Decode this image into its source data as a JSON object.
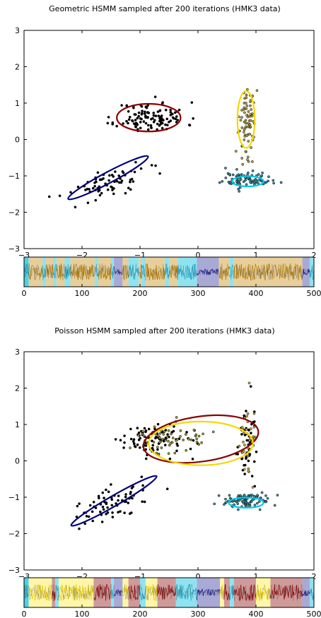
{
  "chart_data": [
    {
      "type": "scatter",
      "title": "Geometric HSMM sampled after 200 iterations (HMK3 data)",
      "xlabel": "",
      "ylabel": "",
      "xlim": [
        -3,
        2
      ],
      "ylim": [
        -3,
        3
      ],
      "xticks": [
        "−3",
        "−2",
        "−1",
        "0",
        "1",
        "2"
      ],
      "yticks": [
        "−3",
        "−2",
        "−1",
        "0",
        "1",
        "2",
        "3"
      ],
      "grid": false,
      "clusters": [
        {
          "color": "#000000",
          "center": [
            -0.8,
            0.6
          ],
          "spread": [
            0.5,
            0.35
          ],
          "n": 120
        },
        {
          "color": "#000000",
          "center": [
            -1.55,
            -1.2
          ],
          "spread": [
            0.6,
            0.35
          ],
          "n": 70,
          "tilt": 0.55
        },
        {
          "color": "#b3a24a",
          "center": [
            0.85,
            0.5
          ],
          "spread": [
            0.12,
            0.8
          ],
          "n": 80
        },
        {
          "color": "#3b8ca0",
          "center": [
            0.85,
            -1.1
          ],
          "spread": [
            0.35,
            0.18
          ],
          "n": 90
        }
      ],
      "ellipses": [
        {
          "color": "#8b0000",
          "center": [
            -0.85,
            0.6
          ],
          "rx": 0.55,
          "ry": 0.38,
          "angle": 0
        },
        {
          "color": "#00007a",
          "center": [
            -1.55,
            -1.05
          ],
          "rx": 0.78,
          "ry": 0.15,
          "angle": 28
        },
        {
          "color": "#f5d800",
          "center": [
            0.83,
            0.55
          ],
          "rx": 0.15,
          "ry": 0.78,
          "angle": 0
        },
        {
          "color": "#00c8e8",
          "center": [
            0.86,
            -1.15
          ],
          "rx": 0.27,
          "ry": 0.14,
          "angle": 0
        }
      ],
      "state_sequence": {
        "x_range": [
          0,
          500
        ],
        "xticks": [
          "0",
          "100",
          "200",
          "300",
          "400",
          "500"
        ],
        "segments": [
          {
            "start": 0,
            "end": 8,
            "color": "#4fd0e6"
          },
          {
            "start": 8,
            "end": 32,
            "color": "#e8cf9a"
          },
          {
            "start": 32,
            "end": 38,
            "color": "#8fe3f0"
          },
          {
            "start": 38,
            "end": 50,
            "color": "#e8cf9a"
          },
          {
            "start": 50,
            "end": 56,
            "color": "#8fe3f0"
          },
          {
            "start": 56,
            "end": 70,
            "color": "#e8cf9a"
          },
          {
            "start": 70,
            "end": 80,
            "color": "#8fe3f0"
          },
          {
            "start": 80,
            "end": 122,
            "color": "#e8cf9a"
          },
          {
            "start": 122,
            "end": 128,
            "color": "#8fe3f0"
          },
          {
            "start": 128,
            "end": 150,
            "color": "#e8cf9a"
          },
          {
            "start": 150,
            "end": 155,
            "color": "#8fe3f0"
          },
          {
            "start": 155,
            "end": 170,
            "color": "#a9a9d6"
          },
          {
            "start": 170,
            "end": 180,
            "color": "#e8cf9a"
          },
          {
            "start": 180,
            "end": 198,
            "color": "#8fe3f0"
          },
          {
            "start": 198,
            "end": 203,
            "color": "#e8cf9a"
          },
          {
            "start": 203,
            "end": 210,
            "color": "#8fe3f0"
          },
          {
            "start": 210,
            "end": 243,
            "color": "#e8cf9a"
          },
          {
            "start": 243,
            "end": 250,
            "color": "#8fe3f0"
          },
          {
            "start": 250,
            "end": 265,
            "color": "#e8cf9a"
          },
          {
            "start": 265,
            "end": 298,
            "color": "#8fe3f0"
          },
          {
            "start": 298,
            "end": 336,
            "color": "#a9a9d6"
          },
          {
            "start": 336,
            "end": 355,
            "color": "#e8cf9a"
          },
          {
            "start": 355,
            "end": 362,
            "color": "#8fe3f0"
          },
          {
            "start": 362,
            "end": 480,
            "color": "#e8cf9a"
          },
          {
            "start": 480,
            "end": 493,
            "color": "#a9a9d6"
          },
          {
            "start": 493,
            "end": 500,
            "color": "#8fe3f0"
          }
        ]
      }
    },
    {
      "type": "scatter",
      "title": "Poisson HSMM sampled after 200 iterations (HMK3 data)",
      "xlabel": "",
      "ylabel": "",
      "xlim": [
        -3,
        2
      ],
      "ylim": [
        -3,
        3
      ],
      "xticks": [
        "−3",
        "−2",
        "−1",
        "0",
        "1",
        "2"
      ],
      "yticks": [
        "−3",
        "−2",
        "−1",
        "0",
        "1",
        "2",
        "3"
      ],
      "grid": false,
      "clusters": [
        {
          "color": "#000000",
          "center": [
            -0.8,
            0.6
          ],
          "spread": [
            0.5,
            0.35
          ],
          "n": 90
        },
        {
          "color": "#9a9a3a",
          "center": [
            -0.6,
            0.6
          ],
          "spread": [
            0.55,
            0.38
          ],
          "n": 60
        },
        {
          "color": "#000000",
          "center": [
            -1.55,
            -1.2
          ],
          "spread": [
            0.6,
            0.35
          ],
          "n": 70,
          "tilt": 0.55
        },
        {
          "color": "#000000",
          "center": [
            0.85,
            0.5
          ],
          "spread": [
            0.12,
            0.8
          ],
          "n": 50
        },
        {
          "color": "#c9b04a",
          "center": [
            0.85,
            0.5
          ],
          "spread": [
            0.12,
            0.8
          ],
          "n": 40
        },
        {
          "color": "#3b8ca0",
          "center": [
            0.85,
            -1.1
          ],
          "spread": [
            0.35,
            0.18
          ],
          "n": 90
        }
      ],
      "ellipses": [
        {
          "color": "#8b0000",
          "center": [
            0.05,
            0.6
          ],
          "rx": 1.0,
          "ry": 0.62,
          "angle": 8
        },
        {
          "color": "#f5d800",
          "center": [
            0.05,
            0.48
          ],
          "rx": 0.9,
          "ry": 0.6,
          "angle": 0
        },
        {
          "color": "#00007a",
          "center": [
            -1.45,
            -1.1
          ],
          "rx": 0.85,
          "ry": 0.14,
          "angle": 30
        },
        {
          "color": "#00c8e8",
          "center": [
            0.83,
            -1.15
          ],
          "rx": 0.3,
          "ry": 0.14,
          "angle": 0
        }
      ],
      "state_sequence": {
        "x_range": [
          0,
          500
        ],
        "xticks": [
          "0",
          "100",
          "200",
          "300",
          "400",
          "500"
        ],
        "segments": [
          {
            "start": 0,
            "end": 8,
            "color": "#4fd0e6"
          },
          {
            "start": 8,
            "end": 48,
            "color": "#fff6a8"
          },
          {
            "start": 48,
            "end": 54,
            "color": "#cf9a9a"
          },
          {
            "start": 54,
            "end": 60,
            "color": "#8fe3f0"
          },
          {
            "start": 60,
            "end": 120,
            "color": "#fff6a8"
          },
          {
            "start": 120,
            "end": 150,
            "color": "#cf9a9a"
          },
          {
            "start": 150,
            "end": 155,
            "color": "#8fe3f0"
          },
          {
            "start": 155,
            "end": 170,
            "color": "#a9a9d6"
          },
          {
            "start": 170,
            "end": 180,
            "color": "#fff6a8"
          },
          {
            "start": 180,
            "end": 200,
            "color": "#cf9a9a"
          },
          {
            "start": 200,
            "end": 210,
            "color": "#8fe3f0"
          },
          {
            "start": 210,
            "end": 230,
            "color": "#fff6a8"
          },
          {
            "start": 230,
            "end": 262,
            "color": "#cf9a9a"
          },
          {
            "start": 262,
            "end": 298,
            "color": "#8fe3f0"
          },
          {
            "start": 298,
            "end": 338,
            "color": "#a9a9d6"
          },
          {
            "start": 338,
            "end": 345,
            "color": "#fff6a8"
          },
          {
            "start": 345,
            "end": 355,
            "color": "#cf9a9a"
          },
          {
            "start": 355,
            "end": 362,
            "color": "#8fe3f0"
          },
          {
            "start": 362,
            "end": 400,
            "color": "#cf9a9a"
          },
          {
            "start": 400,
            "end": 425,
            "color": "#fff6a8"
          },
          {
            "start": 425,
            "end": 480,
            "color": "#cf9a9a"
          },
          {
            "start": 480,
            "end": 493,
            "color": "#a9a9d6"
          },
          {
            "start": 493,
            "end": 500,
            "color": "#8fe3f0"
          }
        ]
      }
    }
  ]
}
